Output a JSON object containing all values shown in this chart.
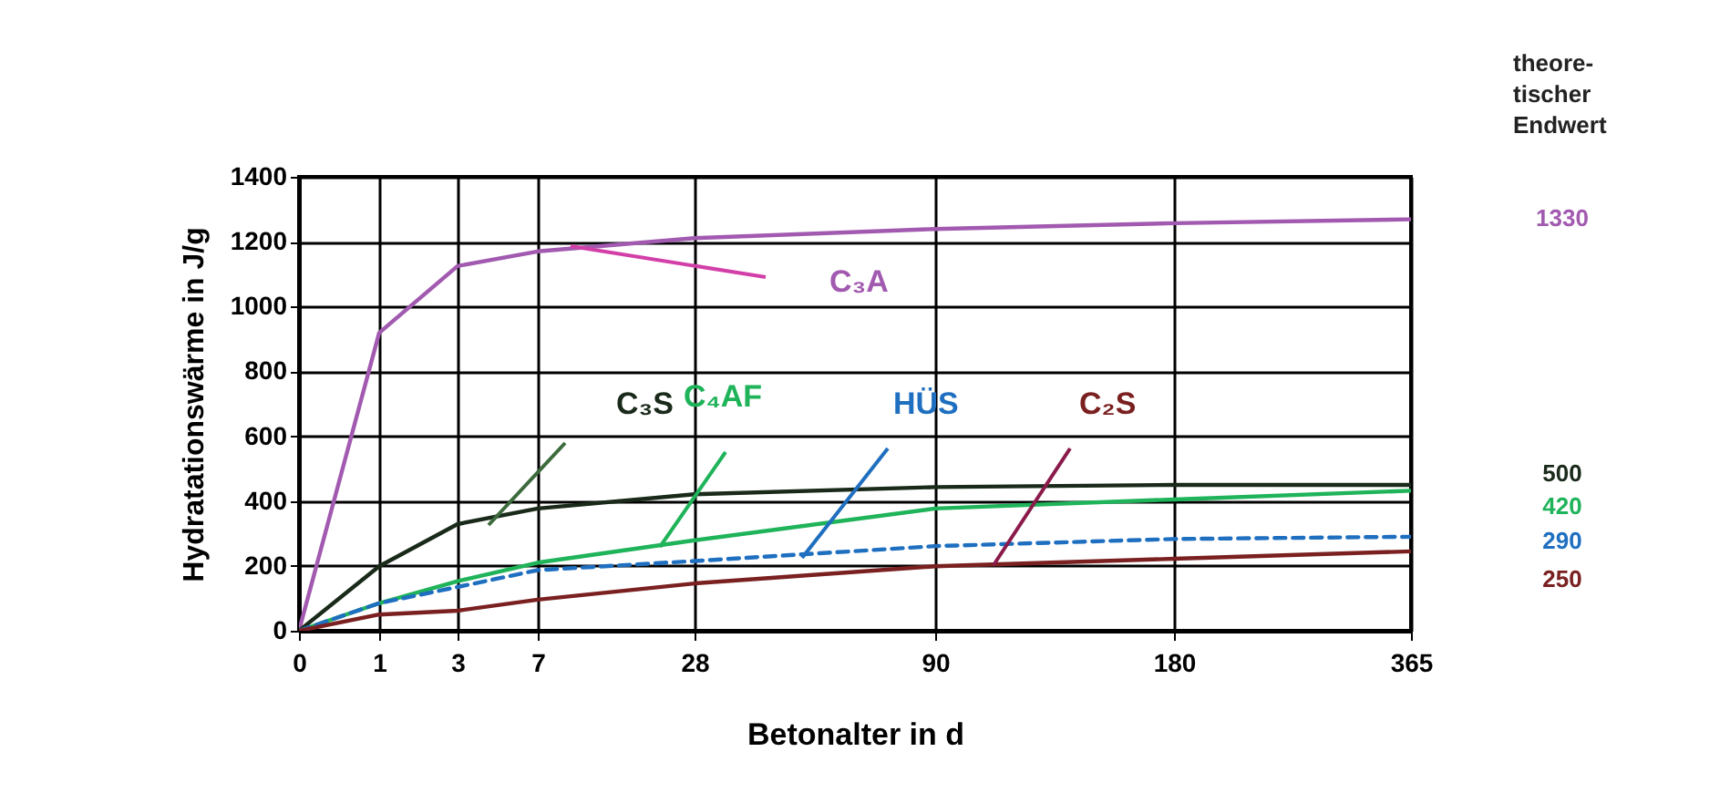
{
  "chart_data": {
    "type": "line",
    "xlabel": "Betonalter in d",
    "ylabel": "Hydratationswärme in J/g",
    "categories": [
      "0",
      "1",
      "3",
      "7",
      "28",
      "90",
      "180",
      "365"
    ],
    "ylim": [
      0,
      1400
    ],
    "yticks": [
      0,
      200,
      400,
      600,
      800,
      1000,
      1200,
      1400
    ],
    "grid": true,
    "legend": false,
    "line_style": "solid",
    "marker": "none",
    "series": [
      {
        "name": "C₃A",
        "color": "#a25ab0",
        "values": [
          0,
          919,
          1125,
          1170,
          1211,
          1239,
          1257,
          1269
        ]
      },
      {
        "name": "C₃S",
        "color": "#1a2a1a",
        "values": [
          0,
          199,
          329,
          377,
          421,
          443,
          450,
          450
        ]
      },
      {
        "name": "C₄AF",
        "color": "#1fb35a",
        "values": [
          0,
          85,
          153,
          210,
          279,
          377,
          405,
          432
        ]
      },
      {
        "name": "HÜS",
        "color": "#1f6fc0",
        "values": [
          0,
          85,
          135,
          187,
          215,
          261,
          283,
          290
        ],
        "line_style": "dashed"
      },
      {
        "name": "C₂S",
        "color": "#7a2020",
        "values": [
          0,
          50,
          62,
          96,
          146,
          199,
          222,
          245
        ]
      }
    ],
    "annotations": [
      "theore-\ntischer\nEndwert",
      "1330",
      "500",
      "420",
      "290",
      "250"
    ]
  }
}
